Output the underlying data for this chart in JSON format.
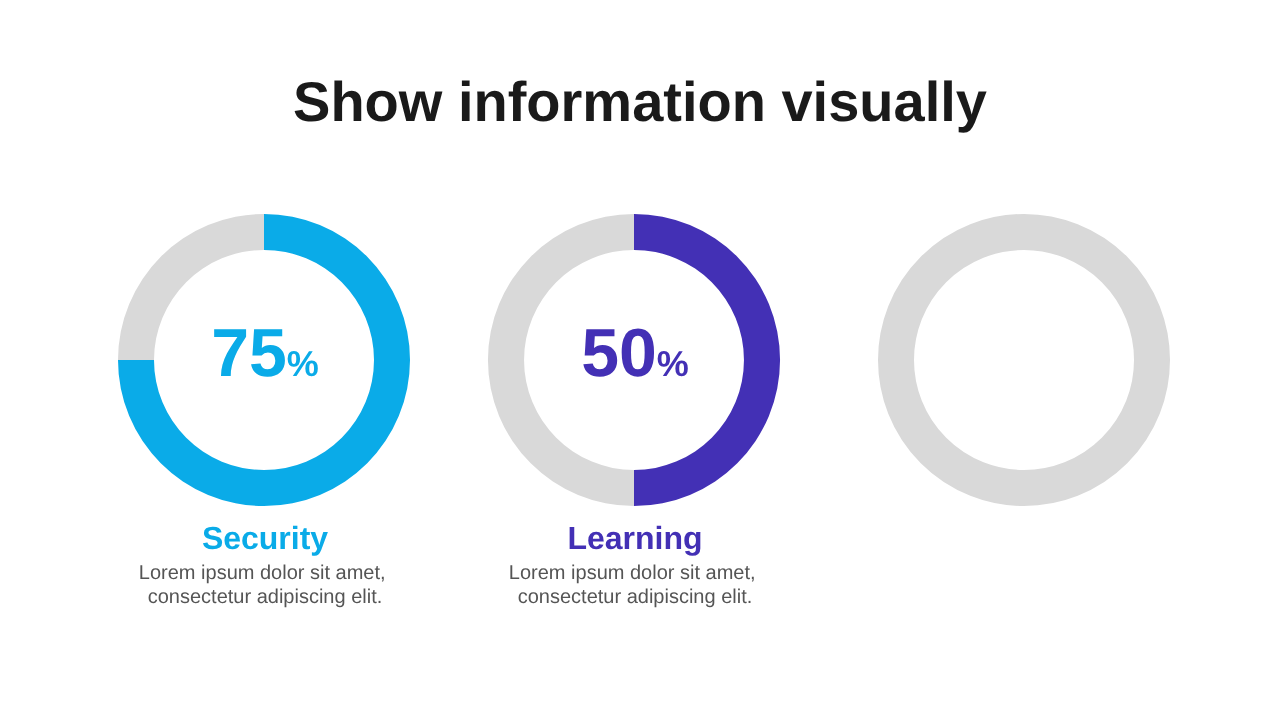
{
  "chart_data": [
    {
      "type": "other",
      "title": "Show information visually"
    },
    {
      "type": "donut",
      "title": "Security",
      "subtitle": "Lorem ipsum dolor sit amet, consectetur adipiscing elit.",
      "categories": [
        null,
        null
      ],
      "values": [
        75,
        25
      ],
      "colors": [
        "#0aabe8",
        "#d9d9d9"
      ],
      "annotations": [
        "75%"
      ]
    },
    {
      "type": "donut",
      "title": "Learning",
      "subtitle": "Lorem ipsum dolor sit amet, consectetur adipiscing elit.",
      "categories": [
        null,
        null
      ],
      "values": [
        50,
        50
      ],
      "colors": [
        "#4330b5",
        "#d9d9d9"
      ],
      "annotations": [
        "50%"
      ]
    },
    {
      "type": "other",
      "color": "#d9d9d9"
    }
  ]
}
